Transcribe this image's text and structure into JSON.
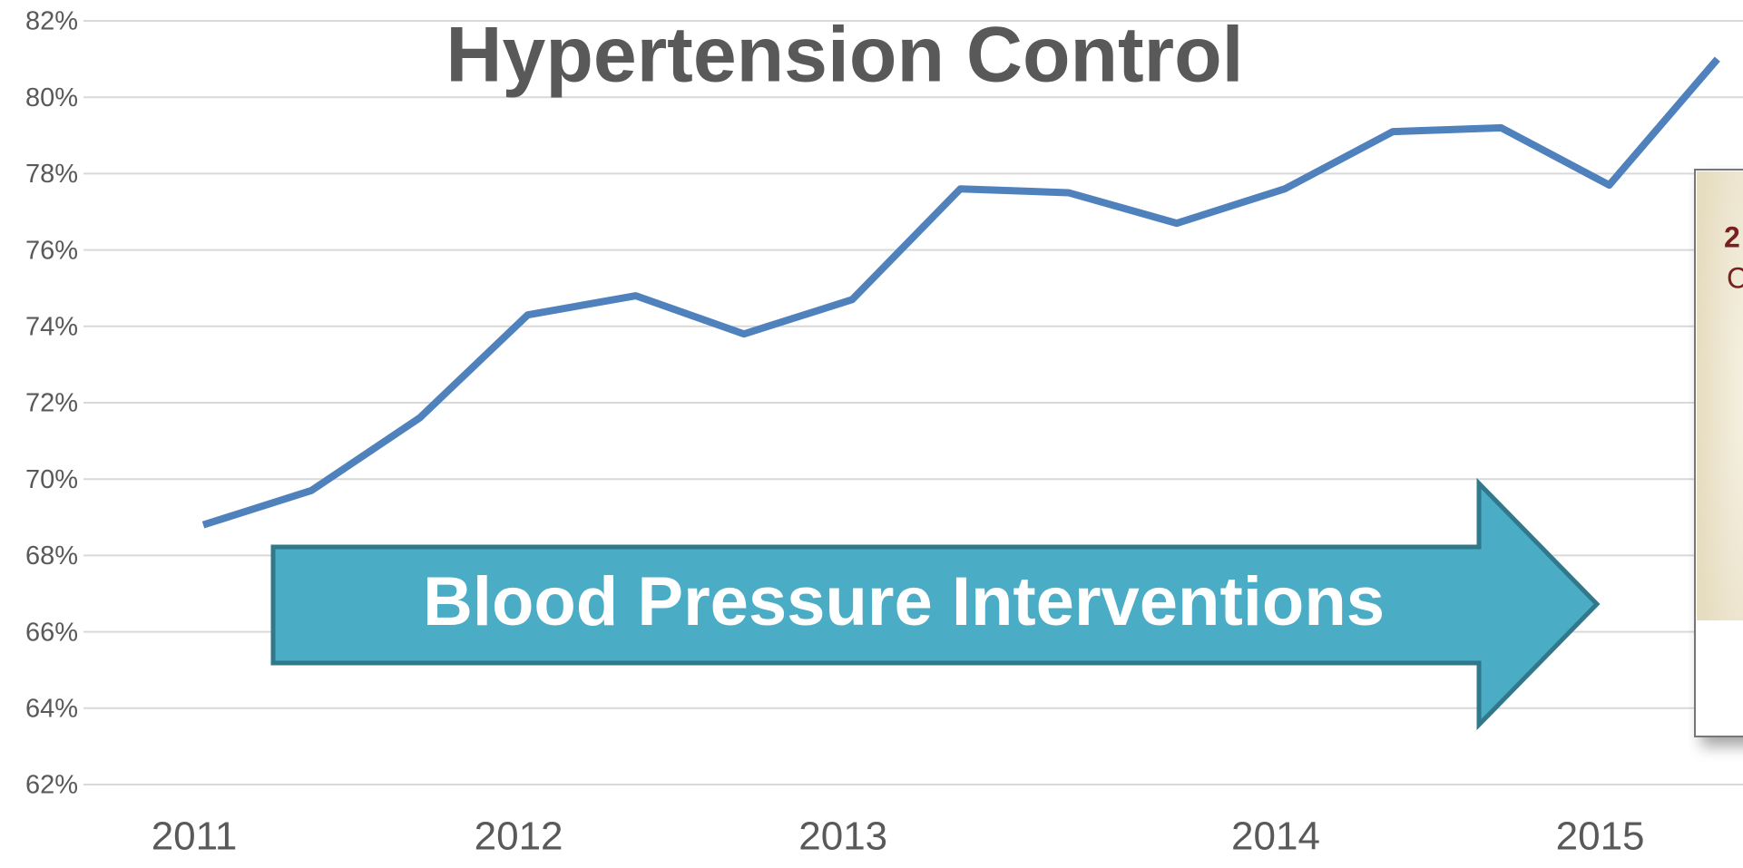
{
  "chart_data": {
    "type": "line",
    "title": "Hypertension Control",
    "categories": [
      "2011",
      null,
      null,
      "2012",
      null,
      null,
      "2013",
      null,
      null,
      null,
      "2014",
      null,
      null,
      "2015",
      null
    ],
    "series": [
      {
        "name": "Hypertension Control",
        "color": "#4f81bd",
        "values": [
          68.8,
          69.7,
          71.6,
          74.3,
          74.8,
          73.8,
          74.7,
          77.6,
          77.5,
          76.7,
          77.6,
          79.1,
          79.2,
          77.7,
          81.0
        ]
      }
    ],
    "ylim": [
      62,
      82
    ],
    "yticks": [
      {
        "value": 62,
        "label": "62%"
      },
      {
        "value": 64,
        "label": "64%"
      },
      {
        "value": 66,
        "label": "66%"
      },
      {
        "value": 68,
        "label": "68%"
      },
      {
        "value": 70,
        "label": "70%"
      },
      {
        "value": 72,
        "label": "72%"
      },
      {
        "value": 74,
        "label": "74%"
      },
      {
        "value": 76,
        "label": "76%"
      },
      {
        "value": 78,
        "label": "78%"
      },
      {
        "value": 80,
        "label": "80%"
      },
      {
        "value": 82,
        "label": "82%"
      }
    ],
    "grid": true,
    "annotations": [
      "Blood Pressure Interventions"
    ],
    "inset_text": [
      "2",
      "C"
    ]
  }
}
